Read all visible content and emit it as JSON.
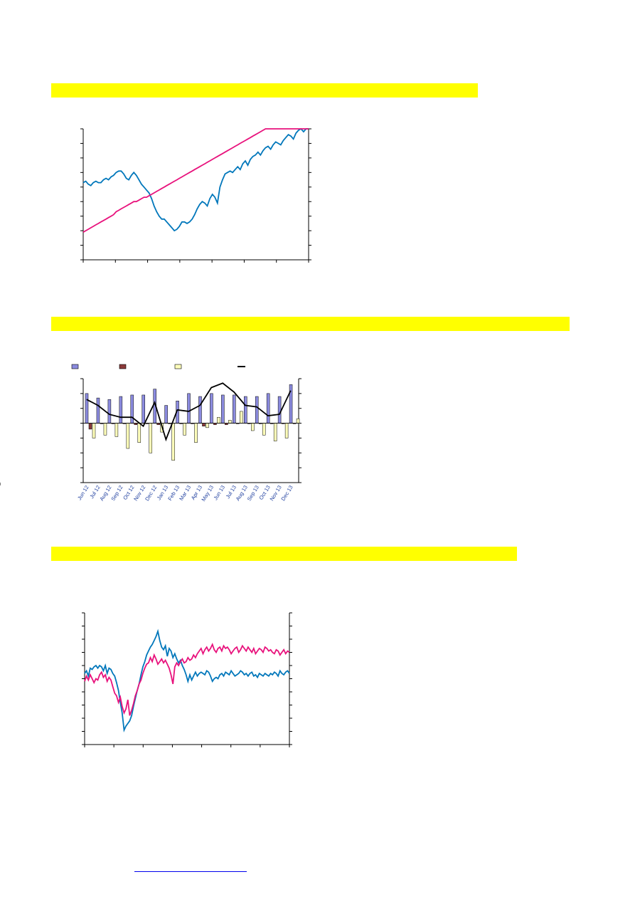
{
  "sections": [
    {
      "band_title": "",
      "band_color": "#ffff00"
    },
    {
      "band_title": "",
      "band_color": "#ffff00"
    },
    {
      "band_title": "",
      "band_color": "#ffff00"
    }
  ],
  "footer_link": {
    "text": ""
  },
  "chart_data": [
    {
      "type": "line",
      "title": "",
      "x_count": 90,
      "ylim": [
        0,
        9
      ],
      "grid": false,
      "series": [
        {
          "color": "#0077bb",
          "values": [
            5.3,
            5.4,
            5.2,
            5.1,
            5.3,
            5.4,
            5.3,
            5.3,
            5.5,
            5.6,
            5.5,
            5.7,
            5.8,
            6.0,
            6.1,
            6.1,
            5.9,
            5.6,
            5.5,
            5.8,
            6.0,
            5.8,
            5.5,
            5.2,
            5.0,
            4.8,
            4.6,
            4.2,
            3.7,
            3.3,
            3.0,
            2.8,
            2.8,
            2.6,
            2.4,
            2.2,
            2.0,
            2.1,
            2.3,
            2.6,
            2.6,
            2.5,
            2.6,
            2.8,
            3.1,
            3.5,
            3.8,
            4.0,
            3.9,
            3.7,
            4.2,
            4.5,
            4.3,
            3.9,
            5.0,
            5.5,
            5.9,
            6.0,
            6.1,
            6.0,
            6.2,
            6.4,
            6.2,
            6.6,
            6.8,
            6.5,
            6.9,
            7.1,
            7.2,
            7.4,
            7.2,
            7.5,
            7.7,
            7.8,
            7.6,
            7.9,
            8.1,
            8.0,
            7.9,
            8.2,
            8.4,
            8.6,
            8.5,
            8.3,
            8.7,
            8.9,
            9.0,
            8.8,
            9.0,
            9.0
          ]
        },
        {
          "color": "#e8127c",
          "values": [
            1.9,
            2.0,
            2.1,
            2.2,
            2.3,
            2.4,
            2.5,
            2.6,
            2.7,
            2.8,
            2.9,
            3.0,
            3.1,
            3.3,
            3.4,
            3.5,
            3.6,
            3.7,
            3.8,
            3.9,
            4.0,
            4.0,
            4.1,
            4.2,
            4.3,
            4.3,
            4.4,
            4.5,
            4.6,
            4.7,
            4.8,
            4.9,
            5.0,
            5.1,
            5.2,
            5.3,
            5.4,
            5.5,
            5.6,
            5.7,
            5.8,
            5.9,
            6.0,
            6.1,
            6.2,
            6.3,
            6.4,
            6.5,
            6.6,
            6.7,
            6.8,
            6.9,
            7.0,
            7.1,
            7.2,
            7.3,
            7.4,
            7.5,
            7.6,
            7.7,
            7.8,
            7.9,
            8.0,
            8.1,
            8.2,
            8.3,
            8.4,
            8.5,
            8.6,
            8.7,
            8.8,
            8.9,
            9.0,
            9.0,
            9.0,
            9.0,
            9.0,
            9.0,
            9.0,
            9.0,
            9.0,
            9.0,
            9.0,
            9.0,
            9.0,
            9.0,
            9.0,
            9.0,
            9.0,
            9.0
          ]
        }
      ]
    },
    {
      "type": "bar",
      "title": "",
      "categories": [
        "Jun 12",
        "Jul 12",
        "Aug 12",
        "Sep 12",
        "Oct 12",
        "Nov 12",
        "Dec 12",
        "Jan 13",
        "Feb 13",
        "Mar 13",
        "Apr 13",
        "May 13",
        "Jun 13",
        "Jul 13",
        "Aug 13",
        "Sep 13",
        "Oct 13",
        "Nov 13",
        "Dec 13"
      ],
      "ylim": [
        -4,
        3
      ],
      "y2lim": [
        -4,
        3
      ],
      "legend_placement": "top",
      "grid": false,
      "series": [
        {
          "name": "",
          "kind": "bar",
          "color": "#8b8bdf",
          "values": [
            2.0,
            1.7,
            1.6,
            1.8,
            1.9,
            1.9,
            2.3,
            1.2,
            1.5,
            2.0,
            1.8,
            2.0,
            1.9,
            1.9,
            1.8,
            1.8,
            2.0,
            1.8,
            2.6
          ]
        },
        {
          "name": "",
          "kind": "bar",
          "color": "#8b3a3a",
          "values": [
            -0.4,
            0.0,
            0.0,
            0.0,
            -0.1,
            0.0,
            -0.1,
            0.0,
            0.0,
            0.0,
            -0.2,
            -0.1,
            -0.1,
            0.0,
            0.0,
            0.0,
            0.0,
            0.0,
            0.0
          ]
        },
        {
          "name": "",
          "kind": "bar",
          "color": "#ffffbb",
          "values": [
            -1.0,
            -0.8,
            -0.9,
            -1.7,
            -1.3,
            -2.0,
            -0.6,
            -2.5,
            -0.8,
            -1.3,
            -0.3,
            0.4,
            0.2,
            0.8,
            -0.5,
            -0.8,
            -1.2,
            -1.0,
            0.3
          ]
        },
        {
          "name": "",
          "kind": "line",
          "color": "#000000",
          "values": [
            1.6,
            1.2,
            0.6,
            0.4,
            0.4,
            -0.2,
            1.4,
            -1.1,
            0.9,
            0.8,
            1.2,
            2.4,
            2.7,
            2.1,
            1.2,
            1.1,
            0.5,
            0.6,
            2.2
          ]
        }
      ]
    },
    {
      "type": "line",
      "title": "",
      "x_count": 110,
      "ylim": [
        -5,
        5
      ],
      "grid": false,
      "series": [
        {
          "color": "#0077bb",
          "values": [
            0.4,
            0.6,
            0.2,
            0.8,
            0.7,
            0.9,
            1.0,
            0.8,
            1.0,
            0.9,
            0.6,
            1.0,
            0.4,
            0.8,
            0.7,
            0.4,
            0.2,
            -0.3,
            -0.9,
            -1.8,
            -2.6,
            -3.9,
            -3.6,
            -3.4,
            -3.2,
            -2.8,
            -2.1,
            -1.5,
            -0.9,
            -0.4,
            0.3,
            0.9,
            1.3,
            1.8,
            2.1,
            2.4,
            2.6,
            2.9,
            3.2,
            3.6,
            2.9,
            2.4,
            2.2,
            2.5,
            1.7,
            2.3,
            2.1,
            1.6,
            1.9,
            1.5,
            1.2,
            1.4,
            1.0,
            0.7,
            0.3,
            -0.2,
            0.3,
            -0.1,
            0.2,
            0.5,
            0.2,
            0.4,
            0.5,
            0.4,
            0.3,
            0.6,
            0.5,
            0.2,
            -0.2,
            0.0,
            0.1,
            0.0,
            0.3,
            0.4,
            0.2,
            0.5,
            0.4,
            0.3,
            0.6,
            0.4,
            0.2,
            0.3,
            0.4,
            0.6,
            0.5,
            0.3,
            0.4,
            0.2,
            0.4,
            0.5,
            0.2,
            0.3,
            0.1,
            0.4,
            0.3,
            0.2,
            0.4,
            0.3,
            0.2,
            0.4,
            0.3,
            0.5,
            0.4,
            0.2,
            0.6,
            0.4,
            0.3,
            0.5,
            0.6,
            0.4
          ]
        },
        {
          "color": "#e8127c",
          "values": [
            -0.2,
            0.2,
            -0.1,
            0.3,
            0.0,
            -0.3,
            0.0,
            -0.1,
            0.3,
            0.5,
            0.1,
            0.3,
            -0.2,
            0.1,
            -0.1,
            -0.6,
            -1.1,
            -1.3,
            -1.8,
            -1.4,
            -2.1,
            -2.6,
            -2.3,
            -1.6,
            -2.8,
            -2.4,
            -1.9,
            -1.3,
            -0.9,
            -0.4,
            -0.1,
            0.4,
            0.8,
            1.1,
            1.2,
            1.6,
            1.3,
            1.8,
            1.5,
            1.1,
            1.3,
            1.5,
            1.2,
            1.4,
            1.1,
            0.8,
            0.3,
            -0.4,
            0.9,
            1.2,
            1.0,
            1.3,
            1.5,
            1.2,
            1.3,
            1.6,
            1.4,
            1.5,
            1.8,
            1.6,
            1.9,
            2.1,
            2.3,
            1.9,
            2.2,
            2.4,
            2.1,
            2.3,
            2.6,
            2.2,
            2.0,
            2.3,
            2.4,
            2.1,
            2.5,
            2.3,
            2.4,
            2.2,
            1.9,
            2.1,
            2.3,
            2.4,
            2.0,
            2.2,
            2.5,
            2.3,
            2.1,
            2.4,
            2.2,
            2.0,
            2.3,
            1.9,
            2.1,
            2.3,
            2.2,
            2.0,
            2.4,
            2.3,
            2.1,
            2.2,
            2.0,
            1.9,
            2.2,
            2.1,
            1.8,
            2.0,
            2.2,
            1.9,
            2.1,
            2.0
          ]
        }
      ]
    }
  ]
}
